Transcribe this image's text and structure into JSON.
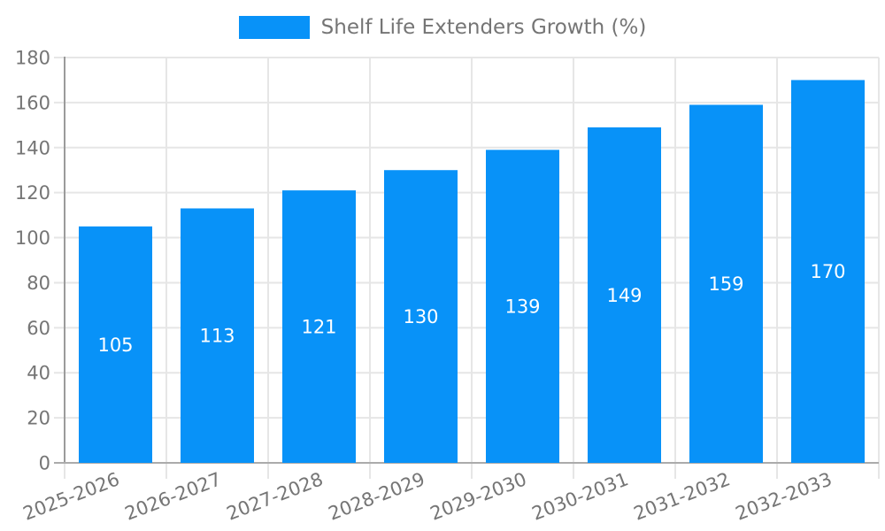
{
  "chart_data": {
    "type": "bar",
    "title": "",
    "xlabel": "",
    "ylabel": "",
    "legend": {
      "label": "Shelf Life Extenders Growth (%)",
      "position": "top-center"
    },
    "categories": [
      "2025-2026",
      "2026-2027",
      "2027-2028",
      "2028-2029",
      "2029-2030",
      "2030-2031",
      "2031-2032",
      "2032-2033"
    ],
    "values": [
      105,
      113,
      121,
      130,
      139,
      149,
      159,
      170
    ],
    "ylim": [
      0,
      180
    ],
    "yticks": [
      0,
      20,
      40,
      60,
      80,
      100,
      120,
      140,
      160,
      180
    ],
    "grid": true,
    "x_tick_rotation_deg": -21,
    "colors": {
      "bar": "#0892f8",
      "value_label": "#ffffff",
      "axis_text": "#757575",
      "grid": "#e6e6e6",
      "y_axis_line": "#9b9b9b",
      "x_axis_line": "#ababab",
      "background": "#ffffff"
    }
  }
}
